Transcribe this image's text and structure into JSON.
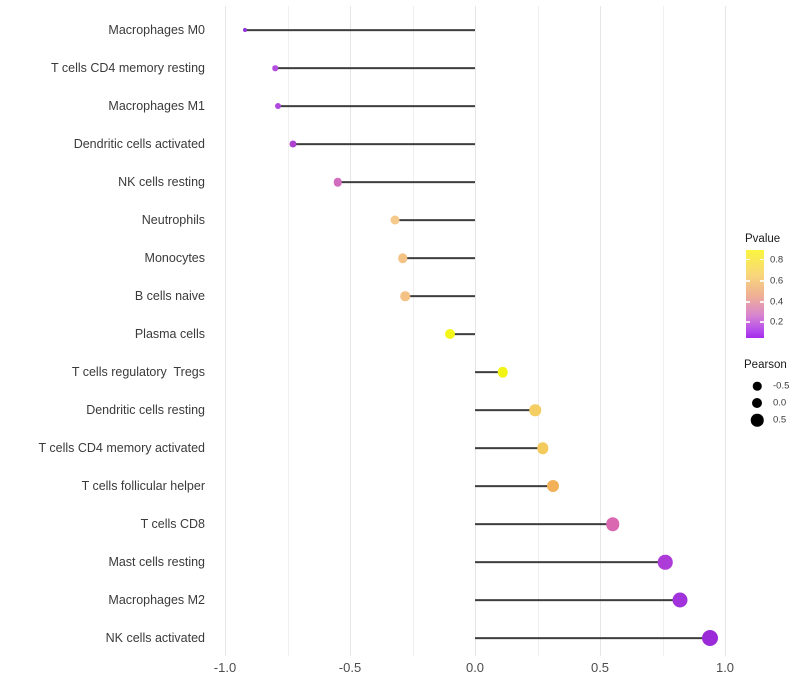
{
  "chart_data": {
    "type": "lollipop",
    "title": "",
    "xlabel": "",
    "ylabel": "",
    "xlim": [
      -1.06,
      1.06
    ],
    "grid_step": 0.25,
    "x_ticks": [
      -1.0,
      -0.5,
      0.0,
      0.5,
      1.0
    ],
    "x_tick_labels": [
      "-1.0",
      "-0.5",
      "0.0",
      "0.5",
      "1.0"
    ],
    "legend_position": "right",
    "points": [
      {
        "label": "Macrophages M0",
        "pearson": -0.92,
        "color": "#9230DD",
        "size": 4
      },
      {
        "label": "T cells CD4 memory resting",
        "pearson": -0.8,
        "color": "#B44CE0",
        "size": 5.5
      },
      {
        "label": "Macrophages M1",
        "pearson": -0.79,
        "color": "#B048DE",
        "size": 6
      },
      {
        "label": "Dendritic cells activated",
        "pearson": -0.73,
        "color": "#AC42CE",
        "size": 7
      },
      {
        "label": "NK cells resting",
        "pearson": -0.55,
        "color": "#D26CBE",
        "size": 8.5
      },
      {
        "label": "Neutrophils",
        "pearson": -0.32,
        "color": "#F5C98C",
        "size": 9
      },
      {
        "label": "Monocytes",
        "pearson": -0.29,
        "color": "#F4C285",
        "size": 9.5
      },
      {
        "label": "B cells naive",
        "pearson": -0.28,
        "color": "#F4C285",
        "size": 9.5
      },
      {
        "label": "Plasma cells",
        "pearson": -0.1,
        "color": "#F3F618",
        "size": 10
      },
      {
        "label": "T cells regulatory  Tregs",
        "pearson": 0.11,
        "color": "#F2F414",
        "size": 10.5
      },
      {
        "label": "Dendritic cells resting",
        "pearson": 0.24,
        "color": "#F5CE63",
        "size": 11.5
      },
      {
        "label": "T cells CD4 memory activated",
        "pearson": 0.27,
        "color": "#F4CA5D",
        "size": 11.5
      },
      {
        "label": "T cells follicular helper",
        "pearson": 0.31,
        "color": "#F2B158",
        "size": 12
      },
      {
        "label": "T cells CD8",
        "pearson": 0.55,
        "color": "#D968B0",
        "size": 13.5
      },
      {
        "label": "Mast cells resting",
        "pearson": 0.76,
        "color": "#AC3BD8",
        "size": 14.5
      },
      {
        "label": "Macrophages M2",
        "pearson": 0.82,
        "color": "#A232DC",
        "size": 15
      },
      {
        "label": "NK cells activated",
        "pearson": 0.94,
        "color": "#9B2BD9",
        "size": 16
      }
    ],
    "legend": {
      "pvalue": {
        "title": "Pvalue",
        "gradient_stops": [
          {
            "color": "#FBF53F",
            "pos": 0
          },
          {
            "color": "#F8D77A",
            "pos": 28
          },
          {
            "color": "#EFB095",
            "pos": 52
          },
          {
            "color": "#D885CF",
            "pos": 74
          },
          {
            "color": "#B44BEE",
            "pos": 92
          },
          {
            "color": "#A52BEB",
            "pos": 100
          }
        ],
        "ticks": [
          {
            "label": "0.8",
            "pct": 11
          },
          {
            "label": "0.6",
            "pct": 35
          },
          {
            "label": "0.4",
            "pct": 59
          },
          {
            "label": "0.2",
            "pct": 82
          }
        ]
      },
      "pearson": {
        "title": "Pearson",
        "items": [
          {
            "label": "-0.5",
            "size": 8.5
          },
          {
            "label": "0.0",
            "size": 10
          },
          {
            "label": "0.5",
            "size": 12.5
          }
        ]
      }
    }
  }
}
